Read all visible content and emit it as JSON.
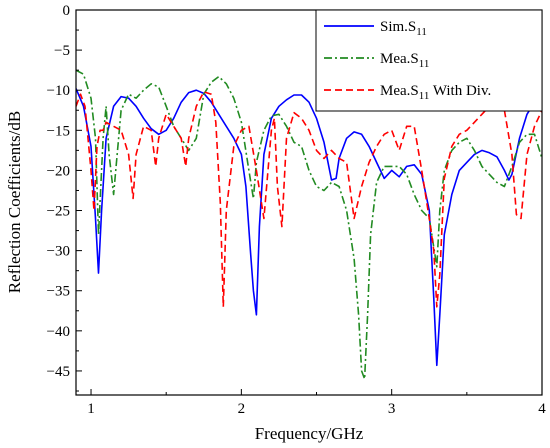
{
  "chart_data": {
    "type": "line",
    "title": "",
    "xlabel": "Frequency/GHz",
    "ylabel": "Reflection Coefficients/dB",
    "xlim": [
      0.9,
      4.0
    ],
    "ylim": [
      -48,
      0
    ],
    "xticks": [
      1,
      2,
      3,
      4
    ],
    "yticks": [
      0,
      -5,
      -10,
      -15,
      -20,
      -25,
      -30,
      -35,
      -40,
      -45
    ],
    "grid": false,
    "legend_position": "top-right",
    "series": [
      {
        "name": "Sim.S",
        "subscript": "11",
        "suffix": "",
        "color": "#0000ff",
        "dash": "solid",
        "x": [
          0.9,
          0.95,
          1.0,
          1.03,
          1.05,
          1.07,
          1.1,
          1.15,
          1.2,
          1.25,
          1.3,
          1.35,
          1.4,
          1.45,
          1.5,
          1.55,
          1.6,
          1.65,
          1.7,
          1.75,
          1.8,
          1.85,
          1.9,
          1.95,
          2.0,
          2.03,
          2.06,
          2.08,
          2.1,
          2.12,
          2.15,
          2.2,
          2.25,
          2.3,
          2.35,
          2.4,
          2.45,
          2.5,
          2.55,
          2.6,
          2.63,
          2.65,
          2.7,
          2.75,
          2.8,
          2.85,
          2.9,
          2.95,
          3.0,
          3.05,
          3.1,
          3.15,
          3.2,
          3.25,
          3.28,
          3.3,
          3.32,
          3.35,
          3.4,
          3.45,
          3.5,
          3.55,
          3.6,
          3.65,
          3.7,
          3.75,
          3.78,
          3.8,
          3.85,
          3.9,
          3.95,
          4.0
        ],
        "values": [
          -9.8,
          -12,
          -17,
          -26,
          -32.8,
          -25,
          -16,
          -12,
          -10.8,
          -11,
          -12,
          -13.5,
          -14.8,
          -15.5,
          -15,
          -13.5,
          -11.5,
          -10.3,
          -10,
          -10.4,
          -11.5,
          -13,
          -14.5,
          -16,
          -18,
          -22,
          -30,
          -35,
          -38,
          -27,
          -18,
          -13.5,
          -12,
          -11.2,
          -10.6,
          -10.6,
          -11.5,
          -13.5,
          -16.5,
          -21.2,
          -21,
          -18.5,
          -16,
          -15.2,
          -15.5,
          -17,
          -19,
          -21,
          -20,
          -20.8,
          -19.5,
          -19.3,
          -20.5,
          -25,
          -36,
          -44.3,
          -38,
          -28,
          -23,
          -20,
          -19,
          -18,
          -17.5,
          -17.8,
          -18.3,
          -20,
          -21.2,
          -20.5,
          -16,
          -13,
          -11.5,
          -11.2
        ]
      },
      {
        "name": "Mea.S",
        "subscript": "11",
        "suffix": "",
        "color": "#228b22",
        "dash": "dashdot",
        "x": [
          0.9,
          0.95,
          1.0,
          1.03,
          1.05,
          1.08,
          1.1,
          1.12,
          1.15,
          1.2,
          1.25,
          1.3,
          1.35,
          1.4,
          1.45,
          1.5,
          1.55,
          1.6,
          1.65,
          1.7,
          1.75,
          1.8,
          1.85,
          1.9,
          1.95,
          2.0,
          2.05,
          2.08,
          2.1,
          2.15,
          2.2,
          2.25,
          2.3,
          2.35,
          2.4,
          2.45,
          2.5,
          2.55,
          2.6,
          2.65,
          2.7,
          2.75,
          2.78,
          2.8,
          2.82,
          2.84,
          2.86,
          2.9,
          2.95,
          3.0,
          3.05,
          3.1,
          3.15,
          3.2,
          3.25,
          3.3,
          3.32,
          3.35,
          3.4,
          3.45,
          3.5,
          3.55,
          3.6,
          3.65,
          3.7,
          3.75,
          3.8,
          3.85,
          3.9,
          3.95,
          4.0
        ],
        "values": [
          -7.5,
          -8,
          -11,
          -16,
          -28,
          -16,
          -12,
          -18,
          -23,
          -12.5,
          -10.5,
          -11,
          -10,
          -9.2,
          -9.6,
          -12,
          -14.5,
          -16,
          -17.5,
          -16,
          -10.5,
          -9,
          -8.3,
          -9.2,
          -11,
          -14,
          -20,
          -23.5,
          -19,
          -15,
          -13.2,
          -13,
          -14.5,
          -16.5,
          -17,
          -20,
          -22,
          -22.5,
          -21.5,
          -22,
          -25,
          -31,
          -38,
          -45,
          -46,
          -38,
          -28,
          -21.5,
          -19.5,
          -19.5,
          -19.5,
          -20.5,
          -23,
          -25,
          -26,
          -32,
          -25,
          -20,
          -17.5,
          -16.5,
          -16,
          -17.5,
          -19.5,
          -20.5,
          -21.5,
          -22,
          -19.5,
          -16.5,
          -15.5,
          -15.5,
          -18.5
        ]
      },
      {
        "name": "Mea.S",
        "subscript": "11",
        "suffix": " With Div.",
        "color": "#ff0000",
        "dash": "dashed",
        "x": [
          0.9,
          0.93,
          0.96,
          1.0,
          1.02,
          1.04,
          1.06,
          1.08,
          1.1,
          1.15,
          1.2,
          1.25,
          1.28,
          1.3,
          1.35,
          1.4,
          1.43,
          1.45,
          1.5,
          1.55,
          1.6,
          1.63,
          1.65,
          1.7,
          1.75,
          1.8,
          1.83,
          1.86,
          1.88,
          1.9,
          1.95,
          2.0,
          2.05,
          2.1,
          2.15,
          2.2,
          2.22,
          2.24,
          2.27,
          2.3,
          2.35,
          2.4,
          2.45,
          2.5,
          2.55,
          2.6,
          2.65,
          2.7,
          2.75,
          2.8,
          2.85,
          2.9,
          2.95,
          3.0,
          3.05,
          3.1,
          3.15,
          3.2,
          3.25,
          3.28,
          3.3,
          3.32,
          3.35,
          3.4,
          3.45,
          3.5,
          3.55,
          3.6,
          3.65,
          3.7,
          3.75,
          3.8,
          3.83,
          3.86,
          3.9,
          3.95,
          4.0
        ],
        "values": [
          -12,
          -10.5,
          -12,
          -20,
          -25,
          -17,
          -15,
          -15,
          -14,
          -14.5,
          -15,
          -18,
          -23.5,
          -18,
          -14.5,
          -15,
          -19.5,
          -16,
          -13,
          -14.5,
          -16,
          -19.5,
          -16,
          -12,
          -10.2,
          -10.5,
          -14,
          -24,
          -37,
          -25,
          -17,
          -15,
          -14.5,
          -20,
          -26,
          -15,
          -13.5,
          -22,
          -27,
          -16,
          -12.8,
          -13.5,
          -15,
          -17.5,
          -18.5,
          -17.5,
          -18.5,
          -19,
          -26,
          -22,
          -19,
          -17,
          -15.5,
          -15,
          -17.5,
          -14.5,
          -14.5,
          -20,
          -26,
          -30,
          -37,
          -33,
          -21,
          -17,
          -15.5,
          -15,
          -14,
          -13,
          -12,
          -11.5,
          -12.5,
          -18,
          -25.5,
          -26,
          -18,
          -14.5,
          -12.5
        ]
      }
    ]
  }
}
